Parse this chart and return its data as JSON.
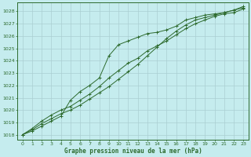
{
  "bg_color": "#c5ecee",
  "grid_color": "#aacfd2",
  "line_color": "#2d6a2d",
  "text_color": "#2d6a2d",
  "title": "Graphe pression niveau de la mer (hPa)",
  "xlim": [
    -0.5,
    23.5
  ],
  "ylim": [
    1017.6,
    1028.7
  ],
  "yticks": [
    1018,
    1019,
    1020,
    1021,
    1022,
    1023,
    1024,
    1025,
    1026,
    1027,
    1028
  ],
  "xticks": [
    0,
    1,
    2,
    3,
    4,
    5,
    6,
    7,
    8,
    9,
    10,
    11,
    12,
    13,
    14,
    15,
    16,
    17,
    18,
    19,
    20,
    21,
    22,
    23
  ],
  "series1_x": [
    0,
    1,
    2,
    3,
    4,
    5,
    6,
    7,
    8,
    9,
    10,
    11,
    12,
    13,
    14,
    15,
    16,
    17,
    18,
    19,
    20,
    21,
    22,
    23
  ],
  "series1_y": [
    1018.0,
    1018.5,
    1019.1,
    1019.6,
    1020.0,
    1020.3,
    1020.8,
    1021.3,
    1021.9,
    1022.6,
    1023.2,
    1023.8,
    1024.2,
    1024.8,
    1025.2,
    1025.6,
    1026.1,
    1026.6,
    1027.0,
    1027.3,
    1027.6,
    1027.8,
    1027.9,
    1028.2
  ],
  "series2_x": [
    0,
    1,
    2,
    3,
    4,
    5,
    6,
    7,
    8,
    9,
    10,
    11,
    12,
    13,
    14,
    15,
    16,
    17,
    18,
    19,
    20,
    21,
    22,
    23
  ],
  "series2_y": [
    1018.0,
    1018.4,
    1018.9,
    1019.3,
    1019.7,
    1020.0,
    1020.4,
    1020.9,
    1021.4,
    1021.9,
    1022.5,
    1023.1,
    1023.7,
    1024.4,
    1025.1,
    1025.8,
    1026.4,
    1026.9,
    1027.3,
    1027.5,
    1027.7,
    1027.9,
    1028.1,
    1028.4
  ],
  "series3_x": [
    0,
    1,
    2,
    3,
    4,
    5,
    6,
    7,
    8,
    9,
    10,
    11,
    12,
    13,
    14,
    15,
    16,
    17,
    18,
    19,
    20,
    21,
    22,
    23
  ],
  "series3_y": [
    1018.0,
    1018.3,
    1018.7,
    1019.1,
    1019.5,
    1020.8,
    1021.5,
    1022.0,
    1022.6,
    1024.4,
    1025.3,
    1025.6,
    1025.9,
    1026.2,
    1026.3,
    1026.5,
    1026.8,
    1027.3,
    1027.5,
    1027.7,
    1027.8,
    1027.9,
    1028.1,
    1028.3
  ]
}
